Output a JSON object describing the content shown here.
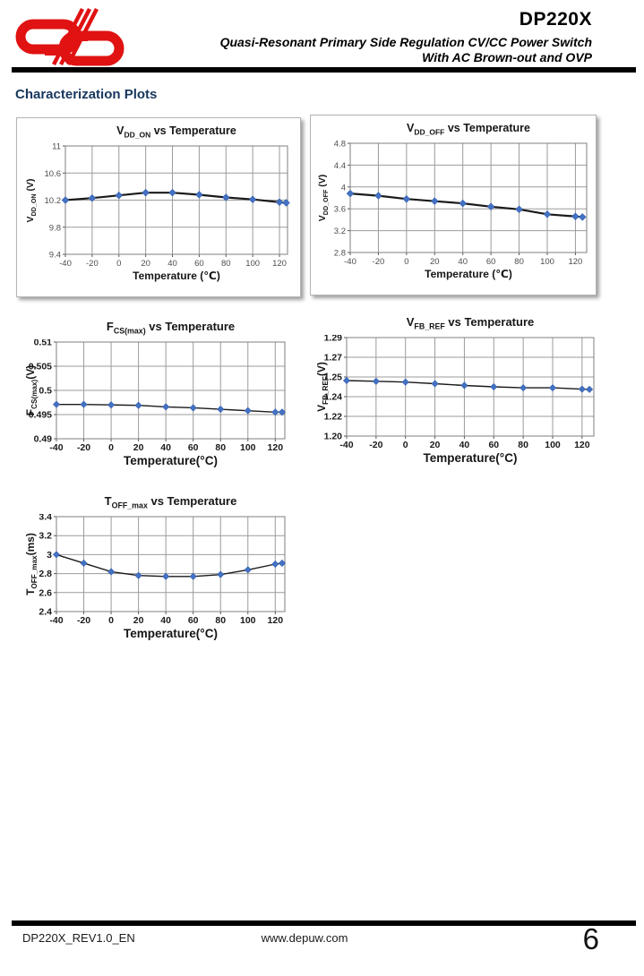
{
  "page": {
    "header": {
      "product": "DP220X",
      "subtitle_line1": "Quasi-Resonant Primary Side Regulation CV/CC Power Switch",
      "subtitle_line2": "With AC Brown-out and OVP"
    },
    "section_title": "Characterization Plots",
    "footer": {
      "doc_ref": "DP220X_REV1.0_EN",
      "website": "www.depuw.com",
      "page_number": "6"
    }
  },
  "colors": {
    "brand_red": "#E01212",
    "heading_navy": "#17365D",
    "marker_blue": "#4472C4",
    "marker_edge": "#2E5AA8",
    "plot_line": "#1a1a1a",
    "grid_gray": "#9b9b9b",
    "axis_gray": "#7f7f7f"
  },
  "chart_data": [
    {
      "id": "vdd-on",
      "type": "line",
      "title_parts": [
        {
          "text": "V",
          "sub": false
        },
        {
          "text": "DD_ON",
          "sub": true
        },
        {
          "text": " vs Temperature",
          "sub": false
        }
      ],
      "ylabel_parts": [
        {
          "text": "V",
          "sub": false
        },
        {
          "text": "DD_ON",
          "sub": true
        },
        {
          "text": " (V)",
          "sub": false
        }
      ],
      "xlabel": "Temperature (℃)",
      "x": [
        -40,
        -20,
        0,
        20,
        40,
        60,
        80,
        100,
        120,
        125
      ],
      "y": [
        10.2,
        10.23,
        10.27,
        10.31,
        10.31,
        10.28,
        10.24,
        10.21,
        10.17,
        10.16
      ],
      "xtick_labels": [
        "-40",
        "-20",
        "0",
        "20",
        "40",
        "60",
        "80",
        "100",
        "120"
      ],
      "xtick_values": [
        -40,
        -20,
        0,
        20,
        40,
        60,
        80,
        100,
        120
      ],
      "ytick_labels": [
        "11",
        "10.6",
        "10.2",
        "9.8",
        "9.4"
      ],
      "ytick_values": [
        11,
        10.6,
        10.2,
        9.8,
        9.4
      ],
      "xlim": [
        -40,
        126
      ],
      "grid": true,
      "legend": "none"
    },
    {
      "id": "vdd-off",
      "type": "line",
      "title_parts": [
        {
          "text": "V",
          "sub": false
        },
        {
          "text": "DD_OFF",
          "sub": true
        },
        {
          "text": "  vs Temperature",
          "sub": false
        }
      ],
      "ylabel_parts": [
        {
          "text": "V",
          "sub": false
        },
        {
          "text": "DD_OFF",
          "sub": true
        },
        {
          "text": " (V)",
          "sub": false
        }
      ],
      "xlabel": "Temperature (℃)",
      "x": [
        -40,
        -20,
        0,
        20,
        40,
        60,
        80,
        100,
        120,
        125
      ],
      "y": [
        3.88,
        3.84,
        3.78,
        3.74,
        3.7,
        3.64,
        3.59,
        3.5,
        3.46,
        3.45
      ],
      "xtick_labels": [
        "-40",
        "-20",
        "0",
        "20",
        "40",
        "60",
        "80",
        "100",
        "120"
      ],
      "xtick_values": [
        -40,
        -20,
        0,
        20,
        40,
        60,
        80,
        100,
        120
      ],
      "ytick_labels": [
        "4.8",
        "4.4",
        "4",
        "3.6",
        "3.2",
        "2.8"
      ],
      "ytick_values": [
        4.8,
        4.4,
        4.0,
        3.6,
        3.2,
        2.8
      ],
      "xlim": [
        -40,
        128
      ],
      "grid": true,
      "legend": "none"
    },
    {
      "id": "fcs-max",
      "type": "line",
      "title_parts": [
        {
          "text": "F",
          "sub": false
        },
        {
          "text": "CS(max)",
          "sub": true
        },
        {
          "text": " vs Temperature",
          "sub": false
        }
      ],
      "ylabel_parts": [
        {
          "text": "F",
          "sub": false
        },
        {
          "text": "CS(max)",
          "sub": true
        },
        {
          "text": "(V)",
          "sub": false
        }
      ],
      "xlabel": "Temperature(°C)",
      "x": [
        -40,
        -20,
        0,
        20,
        40,
        60,
        80,
        100,
        120,
        125
      ],
      "y": [
        0.4971,
        0.4971,
        0.497,
        0.4969,
        0.4966,
        0.4964,
        0.4961,
        0.4958,
        0.4955,
        0.4955
      ],
      "xtick_labels": [
        "-40",
        "-20",
        "0",
        "20",
        "40",
        "60",
        "80",
        "100",
        "120"
      ],
      "xtick_values": [
        -40,
        -20,
        0,
        20,
        40,
        60,
        80,
        100,
        120
      ],
      "ytick_labels": [
        "0.51",
        "0.505",
        "0.5",
        "0.495",
        "0.49"
      ],
      "ytick_values": [
        0.51,
        0.505,
        0.5,
        0.495,
        0.49
      ],
      "xlim": [
        -40,
        127
      ],
      "grid": true,
      "legend": "none"
    },
    {
      "id": "vfb-ref",
      "type": "line",
      "title_parts": [
        {
          "text": "V",
          "sub": false
        },
        {
          "text": "FB_REF",
          "sub": true
        },
        {
          "text": " vs Temperature",
          "sub": false
        }
      ],
      "ylabel_parts": [
        {
          "text": "V",
          "sub": false
        },
        {
          "text": "FB_REF",
          "sub": true
        },
        {
          "text": "(V)",
          "sub": false
        }
      ],
      "xlabel": "Temperature(°C)",
      "x": [
        -40,
        -20,
        0,
        20,
        40,
        60,
        80,
        100,
        120,
        125
      ],
      "y": [
        1.2482,
        1.2478,
        1.2474,
        1.2466,
        1.2457,
        1.245,
        1.2445,
        1.2445,
        1.2438,
        1.2437
      ],
      "xtick_labels": [
        "-40",
        "-20",
        "0",
        "20",
        "40",
        "60",
        "80",
        "100",
        "120"
      ],
      "xtick_values": [
        -40,
        -20,
        0,
        20,
        40,
        60,
        80,
        100,
        120
      ],
      "ytick_labels": [
        "1.29",
        "1.27",
        "1.25",
        "1.24",
        "1.22",
        "1.20"
      ],
      "ytick_values": [
        1.29,
        1.27,
        1.25,
        1.24,
        1.22,
        1.2
      ],
      "xlim": [
        -40,
        128
      ],
      "grid": true,
      "legend": "none"
    },
    {
      "id": "toff-max",
      "type": "line",
      "title_parts": [
        {
          "text": "T",
          "sub": false
        },
        {
          "text": "OFF_max",
          "sub": true
        },
        {
          "text": " vs Temperature",
          "sub": false
        }
      ],
      "ylabel_parts": [
        {
          "text": "T",
          "sub": false
        },
        {
          "text": "OFF_max",
          "sub": true
        },
        {
          "text": "(ms)",
          "sub": false
        }
      ],
      "xlabel": "Temperature(°C)",
      "x": [
        -40,
        -20,
        0,
        20,
        40,
        60,
        80,
        100,
        120,
        125
      ],
      "y": [
        3.0,
        2.91,
        2.82,
        2.78,
        2.77,
        2.77,
        2.79,
        2.84,
        2.9,
        2.91
      ],
      "xtick_labels": [
        "-40",
        "-20",
        "0",
        "20",
        "40",
        "60",
        "80",
        "100",
        "120"
      ],
      "xtick_values": [
        -40,
        -20,
        0,
        20,
        40,
        60,
        80,
        100,
        120
      ],
      "ytick_labels": [
        "3.4",
        "3.2",
        "3",
        "2.8",
        "2.6",
        "2.4"
      ],
      "ytick_values": [
        3.4,
        3.2,
        3.0,
        2.8,
        2.6,
        2.4
      ],
      "xlim": [
        -40,
        127
      ],
      "grid": true,
      "legend": "none"
    }
  ]
}
